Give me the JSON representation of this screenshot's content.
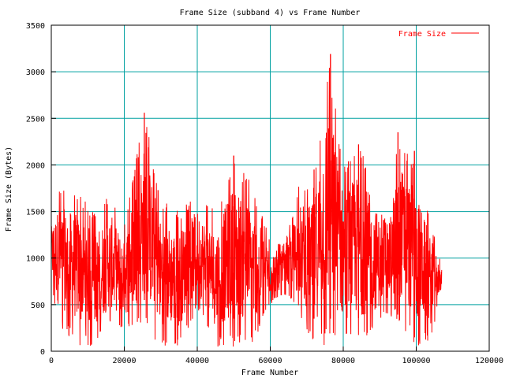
{
  "chart_data": {
    "type": "line",
    "title": "Frame Size (subband 4) vs Frame Number",
    "xlabel": "Frame Number",
    "ylabel": "Frame Size (Bytes)",
    "xlim": [
      0,
      120000
    ],
    "ylim": [
      0,
      3500
    ],
    "x_ticks": [
      0,
      20000,
      40000,
      60000,
      80000,
      100000,
      120000
    ],
    "y_ticks": [
      0,
      500,
      1000,
      1500,
      2000,
      2500,
      3000,
      3500
    ],
    "x_tick_labels": [
      "0",
      "20000",
      "40000",
      "60000",
      "80000",
      "100000",
      "120000"
    ],
    "y_tick_labels": [
      "0",
      "500",
      "1000",
      "1500",
      "2000",
      "2500",
      "3000",
      "3500"
    ],
    "grid": true,
    "legend_position": "top-right",
    "colors": {
      "grid": "#00a0a0",
      "series": "#ff0000",
      "axes": "#000000"
    },
    "series": [
      {
        "name": "Frame Size",
        "x_start": 0,
        "x_end": 107000,
        "description_envelope": [
          {
            "x": 0,
            "low": 700,
            "high": 1450
          },
          {
            "x": 2000,
            "low": 250,
            "high": 1780
          },
          {
            "x": 8000,
            "low": 50,
            "high": 1700
          },
          {
            "x": 12000,
            "low": 50,
            "high": 1470
          },
          {
            "x": 16000,
            "low": 250,
            "high": 1700
          },
          {
            "x": 20000,
            "low": 200,
            "high": 1350
          },
          {
            "x": 25500,
            "low": 250,
            "high": 2560
          },
          {
            "x": 30000,
            "low": 50,
            "high": 1650
          },
          {
            "x": 35000,
            "low": 50,
            "high": 1500
          },
          {
            "x": 40000,
            "low": 450,
            "high": 1700
          },
          {
            "x": 45000,
            "low": 50,
            "high": 1500
          },
          {
            "x": 50000,
            "low": 50,
            "high": 2100
          },
          {
            "x": 55000,
            "low": 50,
            "high": 1800
          },
          {
            "x": 60000,
            "low": 500,
            "high": 1200
          },
          {
            "x": 64000,
            "low": 600,
            "high": 1150
          },
          {
            "x": 68000,
            "low": 400,
            "high": 1800
          },
          {
            "x": 72000,
            "low": 50,
            "high": 1850
          },
          {
            "x": 76000,
            "low": 50,
            "high": 3190
          },
          {
            "x": 80000,
            "low": 50,
            "high": 2000
          },
          {
            "x": 84000,
            "low": 50,
            "high": 2220
          },
          {
            "x": 88000,
            "low": 150,
            "high": 1900
          },
          {
            "x": 92000,
            "low": 400,
            "high": 1350
          },
          {
            "x": 95000,
            "low": 300,
            "high": 2350
          },
          {
            "x": 100000,
            "low": 50,
            "high": 2000
          },
          {
            "x": 104000,
            "low": 100,
            "high": 1400
          },
          {
            "x": 107000,
            "low": 700,
            "high": 900
          }
        ],
        "spikes": [
          {
            "x": 25500,
            "y": 2560
          },
          {
            "x": 76500,
            "y": 3190
          },
          {
            "x": 84200,
            "y": 2220
          },
          {
            "x": 95000,
            "y": 2350
          },
          {
            "x": 50000,
            "y": 2100
          },
          {
            "x": 99500,
            "y": 2150
          },
          {
            "x": 72000,
            "y": 1950
          }
        ]
      }
    ]
  }
}
